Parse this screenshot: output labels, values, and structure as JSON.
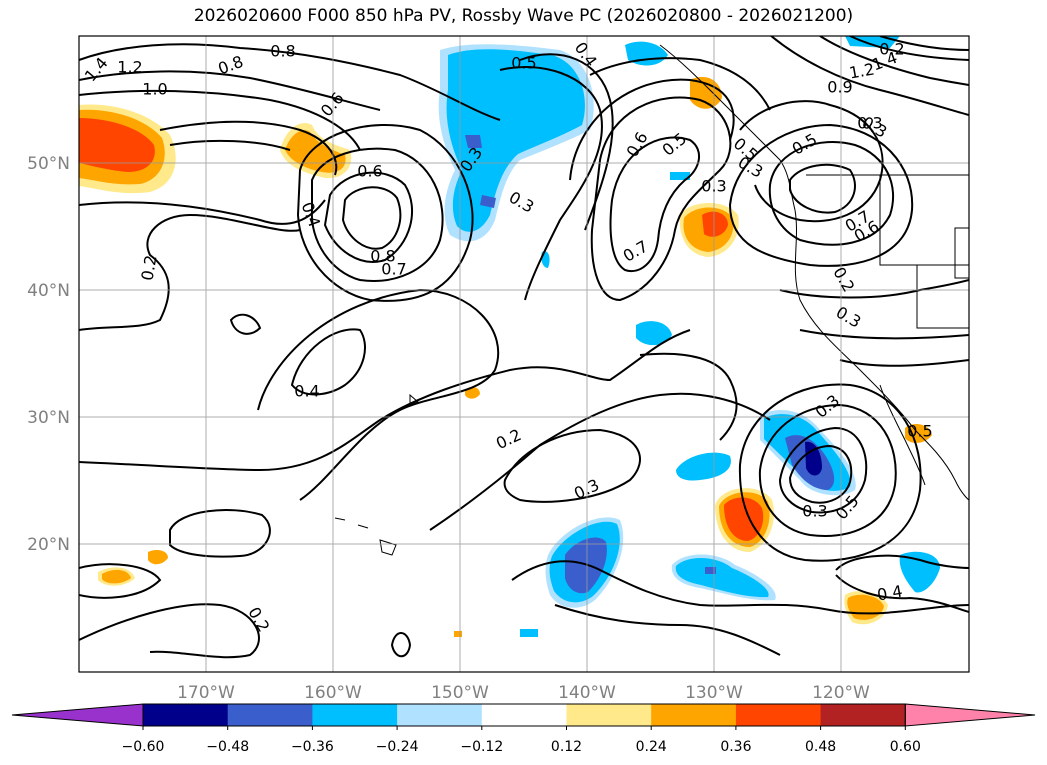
{
  "title": "2026020600 F000 850 hPa PV, Rossby Wave PC (2026020800 - 2026021200)",
  "map": {
    "lon_ticks": [
      "170°W",
      "160°W",
      "150°W",
      "140°W",
      "130°W",
      "120°W"
    ],
    "lat_ticks": [
      "50°N",
      "40°N",
      "30°N",
      "20°N"
    ],
    "grid": true
  },
  "colorbar": {
    "colors": [
      "#9932cc",
      "#00008b",
      "#3a5fcd",
      "#00bfff",
      "#b0e2ff",
      "#ffffff",
      "#ffe98a",
      "#ffa500",
      "#ff4500",
      "#b22222",
      "#ff82ab"
    ],
    "tick_labels": [
      "−0.60",
      "−0.48",
      "−0.36",
      "−0.24",
      "−0.12",
      "0.12",
      "0.24",
      "0.36",
      "0.48",
      "0.60"
    ],
    "extend": "both"
  },
  "contour_labels": [
    "1.4",
    "1.2",
    "1.0",
    "0.8",
    "0.8",
    "0.6",
    "0.6",
    "0.4",
    "0.2",
    "0.4",
    "0.2",
    "0.5",
    "0.3",
    "0.3",
    "0.8",
    "0.7",
    "0.4",
    "0.6",
    "0.7",
    "0.5",
    "0.3",
    "0.3",
    "0.5",
    "0.7",
    "0.6",
    "0.5",
    "0.3",
    "0.2",
    "0.3",
    "0.3",
    "0.2",
    "0.3",
    "0.5",
    "0.4",
    "0.3",
    "0.2",
    "1.4",
    "1.2",
    "0.9",
    "0.5",
    "0.3"
  ]
}
